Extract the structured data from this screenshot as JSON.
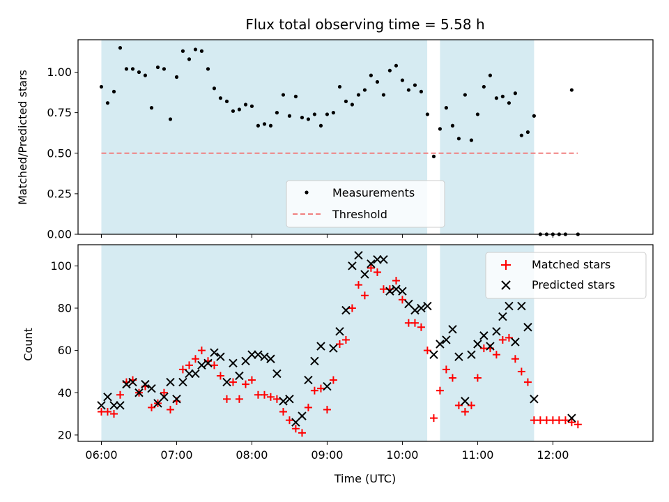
{
  "chart_data": [
    {
      "id": "top",
      "type": "scatter",
      "title": "Flux total observing time = 5.58 h",
      "ylabel": "Matched/Predicted stars",
      "xlabel": "",
      "xlim": [
        -0.31,
        7.33
      ],
      "ylim": [
        0,
        1.2
      ],
      "yticks": [
        0,
        0.25,
        0.5,
        0.75,
        1.0
      ],
      "ytick_labels": [
        "0.00",
        "0.25",
        "0.50",
        "0.75",
        "1.00"
      ],
      "xticks": [
        0,
        1,
        2,
        3,
        4,
        5,
        6
      ],
      "shaded_spans": [
        [
          0,
          4.33
        ],
        [
          4.5,
          5.75
        ]
      ],
      "threshold": {
        "value": 0.5,
        "x_range": [
          0,
          6.33
        ],
        "color": "#f08080",
        "label": "Threshold"
      },
      "legend": {
        "position": "lower center",
        "entries": [
          {
            "label": "Measurements",
            "marker": "dot",
            "color": "#000000"
          },
          {
            "label": "Threshold",
            "marker": "dashed-line",
            "color": "#f08080"
          }
        ]
      },
      "series": [
        {
          "name": "Measurements",
          "color": "#000000",
          "x": [
            0,
            0.083,
            0.167,
            0.25,
            0.333,
            0.417,
            0.5,
            0.583,
            0.667,
            0.75,
            0.833,
            0.917,
            1.0,
            1.083,
            1.167,
            1.25,
            1.333,
            1.417,
            1.5,
            1.583,
            1.667,
            1.75,
            1.833,
            1.917,
            2.0,
            2.083,
            2.167,
            2.25,
            2.333,
            2.417,
            2.5,
            2.583,
            2.667,
            2.75,
            2.833,
            2.917,
            3.0,
            3.083,
            3.167,
            3.25,
            3.333,
            3.417,
            3.5,
            3.583,
            3.667,
            3.75,
            3.833,
            3.917,
            4.0,
            4.083,
            4.167,
            4.25,
            4.333,
            4.417,
            4.5,
            4.583,
            4.667,
            4.75,
            4.833,
            4.917,
            5.0,
            5.083,
            5.167,
            5.25,
            5.333,
            5.417,
            5.5,
            5.583,
            5.667,
            5.75,
            5.833,
            5.917,
            6.0,
            6.083,
            6.167,
            6.25,
            6.333
          ],
          "y": [
            0.91,
            0.81,
            0.88,
            1.15,
            1.02,
            1.02,
            1.0,
            0.98,
            0.78,
            1.03,
            1.02,
            0.71,
            0.97,
            1.13,
            1.08,
            1.14,
            1.13,
            1.02,
            0.9,
            0.84,
            0.82,
            0.76,
            0.77,
            0.8,
            0.79,
            0.67,
            0.68,
            0.67,
            0.75,
            0.86,
            0.73,
            0.85,
            0.72,
            0.71,
            0.74,
            0.67,
            0.74,
            0.75,
            0.91,
            0.82,
            0.8,
            0.86,
            0.89,
            0.98,
            0.94,
            0.86,
            1.01,
            1.04,
            0.95,
            0.89,
            0.92,
            0.88,
            0.74,
            0.48,
            0.65,
            0.78,
            0.67,
            0.59,
            0.86,
            0.58,
            0.74,
            0.91,
            0.98,
            0.84,
            0.85,
            0.81,
            0.87,
            0.61,
            0.63,
            0.73,
            0.0,
            0.0,
            0.0,
            0.0,
            0.0,
            0.89,
            0.0
          ]
        }
      ]
    },
    {
      "id": "bottom",
      "type": "scatter",
      "title": "",
      "ylabel": "Count",
      "xlabel": "Time (UTC)",
      "xlim": [
        -0.31,
        7.33
      ],
      "ylim": [
        17,
        110
      ],
      "yticks": [
        20,
        40,
        60,
        80,
        100
      ],
      "ytick_labels": [
        "20",
        "40",
        "60",
        "80",
        "100"
      ],
      "xticks": [
        0,
        1,
        2,
        3,
        4,
        5,
        6
      ],
      "xtick_labels": [
        "06:00",
        "07:00",
        "08:00",
        "09:00",
        "10:00",
        "11:00",
        "12:00"
      ],
      "shaded_spans": [
        [
          0,
          4.33
        ],
        [
          4.5,
          5.75
        ]
      ],
      "legend": {
        "position": "upper right",
        "entries": [
          {
            "label": "Matched stars",
            "marker": "plus",
            "color": "#ff0000"
          },
          {
            "label": "Predicted stars",
            "marker": "x",
            "color": "#000000"
          }
        ]
      },
      "series": [
        {
          "name": "Matched stars",
          "marker": "plus",
          "color": "#ff0000",
          "x": [
            0,
            0.083,
            0.167,
            0.25,
            0.333,
            0.417,
            0.5,
            0.583,
            0.667,
            0.75,
            0.833,
            0.917,
            1.0,
            1.083,
            1.167,
            1.25,
            1.333,
            1.417,
            1.5,
            1.583,
            1.667,
            1.75,
            1.833,
            1.917,
            2.0,
            2.083,
            2.167,
            2.25,
            2.333,
            2.417,
            2.5,
            2.583,
            2.667,
            2.75,
            2.833,
            2.917,
            3.0,
            3.083,
            3.167,
            3.25,
            3.333,
            3.417,
            3.5,
            3.583,
            3.667,
            3.75,
            3.833,
            3.917,
            4.0,
            4.083,
            4.167,
            4.25,
            4.333,
            4.417,
            4.5,
            4.583,
            4.667,
            4.75,
            4.833,
            4.917,
            5.0,
            5.083,
            5.167,
            5.25,
            5.333,
            5.417,
            5.5,
            5.583,
            5.667,
            5.75,
            5.833,
            5.917,
            6.0,
            6.083,
            6.167,
            6.25,
            6.333
          ],
          "y": [
            31,
            31,
            30,
            39,
            45,
            46,
            40,
            43,
            33,
            35,
            40,
            32,
            36,
            51,
            53,
            56,
            60,
            55,
            53,
            48,
            37,
            45,
            37,
            44,
            46,
            39,
            39,
            38,
            37,
            31,
            27,
            23,
            21,
            33,
            41,
            42,
            32,
            46,
            63,
            65,
            80,
            91,
            86,
            99,
            97,
            89,
            89,
            93,
            84,
            73,
            73,
            71,
            60,
            28,
            41,
            51,
            47,
            34,
            31,
            34,
            47,
            61,
            61,
            58,
            65,
            66,
            56,
            50,
            45,
            27,
            27,
            27,
            27,
            27,
            27,
            26,
            25
          ]
        },
        {
          "name": "Predicted stars",
          "marker": "x",
          "color": "#000000",
          "x": [
            0,
            0.083,
            0.167,
            0.25,
            0.333,
            0.417,
            0.5,
            0.583,
            0.667,
            0.75,
            0.833,
            0.917,
            1.0,
            1.083,
            1.167,
            1.25,
            1.333,
            1.417,
            1.5,
            1.583,
            1.667,
            1.75,
            1.833,
            1.917,
            2.0,
            2.083,
            2.167,
            2.25,
            2.333,
            2.417,
            2.5,
            2.583,
            2.667,
            2.75,
            2.833,
            2.917,
            3.0,
            3.083,
            3.167,
            3.25,
            3.333,
            3.417,
            3.5,
            3.583,
            3.667,
            3.75,
            3.833,
            3.917,
            4.0,
            4.083,
            4.167,
            4.25,
            4.333,
            4.417,
            4.5,
            4.583,
            4.667,
            4.75,
            4.833,
            4.917,
            5.0,
            5.083,
            5.167,
            5.25,
            5.333,
            5.417,
            5.5,
            5.583,
            5.667,
            5.75,
            6.25
          ],
          "y": [
            34,
            38,
            34,
            34,
            44,
            45,
            40,
            44,
            42,
            35,
            38,
            45,
            37,
            45,
            49,
            49,
            53,
            54,
            59,
            57,
            45,
            54,
            48,
            55,
            58,
            58,
            57,
            56,
            49,
            36,
            37,
            26,
            29,
            46,
            55,
            62,
            43,
            61,
            69,
            79,
            100,
            105,
            96,
            101,
            103,
            103,
            88,
            89,
            88,
            82,
            79,
            80,
            81,
            58,
            63,
            65,
            70,
            57,
            36,
            58,
            63,
            67,
            62,
            69,
            76,
            81,
            64,
            81,
            71,
            37,
            28
          ]
        }
      ]
    }
  ]
}
